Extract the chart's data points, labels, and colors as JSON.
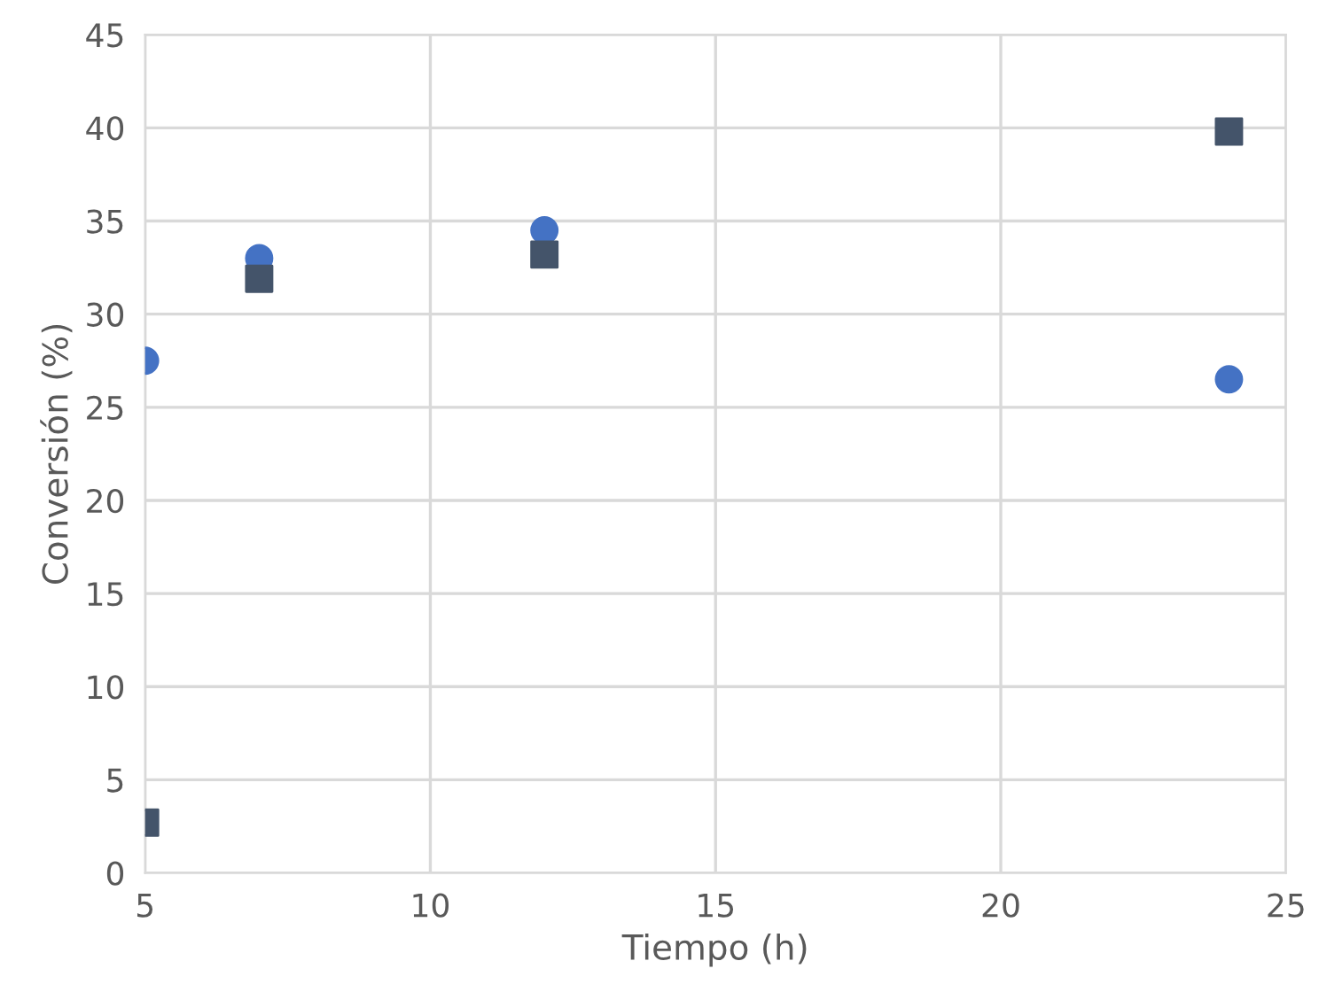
{
  "chart_data": {
    "type": "scatter",
    "xlabel": "Tiempo (h)",
    "ylabel": "Conversión (%)",
    "xlim": [
      5,
      25
    ],
    "xticks": [
      5,
      10,
      15,
      20,
      25
    ],
    "ylim": [
      0,
      45
    ],
    "yticks": [
      0,
      5,
      10,
      15,
      20,
      25,
      30,
      35,
      40,
      45
    ],
    "grid": true,
    "legend": false,
    "series": [
      {
        "color": "#4472c4",
        "marker": "circle",
        "x": [
          5,
          7,
          12,
          24
        ],
        "values": [
          27.5,
          33.0,
          34.5,
          26.5
        ]
      },
      {
        "color": "#44546a",
        "marker": "square",
        "x": [
          5,
          7,
          12,
          24
        ],
        "values": [
          2.7,
          31.9,
          33.2,
          39.8
        ]
      }
    ]
  }
}
